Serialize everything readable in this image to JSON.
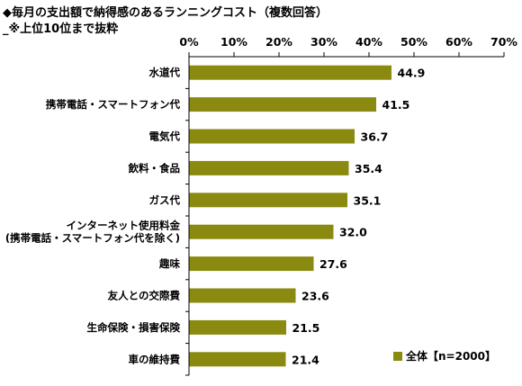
{
  "title": "◆毎月の支出額で納得感のあるランニングコスト（複数回答）",
  "subtitle": "_※上位10位まで抜粋",
  "chart_data": {
    "type": "bar",
    "orientation": "horizontal",
    "categories": [
      [
        "水道代"
      ],
      [
        "携帯電話・スマートフォン代"
      ],
      [
        "電気代"
      ],
      [
        "飲料・食品"
      ],
      [
        "ガス代"
      ],
      [
        "インターネット使用料金",
        "(携帯電話・スマートフォン代を除く)"
      ],
      [
        "趣味"
      ],
      [
        "友人との交際費"
      ],
      [
        "生命保険・損害保険"
      ],
      [
        "車の維持費"
      ]
    ],
    "series": [
      {
        "name": "全体【n=2000】",
        "color": "#8a8a10",
        "values": [
          44.9,
          41.5,
          36.7,
          35.4,
          35.1,
          32.0,
          27.6,
          23.6,
          21.5,
          21.4
        ],
        "labels": [
          "44.9",
          "41.5",
          "36.7",
          "35.4",
          "35.1",
          "32.0",
          "27.6",
          "23.6",
          "21.5",
          "21.4"
        ]
      }
    ],
    "xlim": [
      0,
      70
    ],
    "xticks": [
      0,
      10,
      20,
      30,
      40,
      50,
      60,
      70
    ],
    "xtick_labels": [
      "0%",
      "10%",
      "20%",
      "30%",
      "40%",
      "50%",
      "60%",
      "70%"
    ],
    "tick_position": "top",
    "grid": false,
    "legend_position": "bottom-right"
  }
}
